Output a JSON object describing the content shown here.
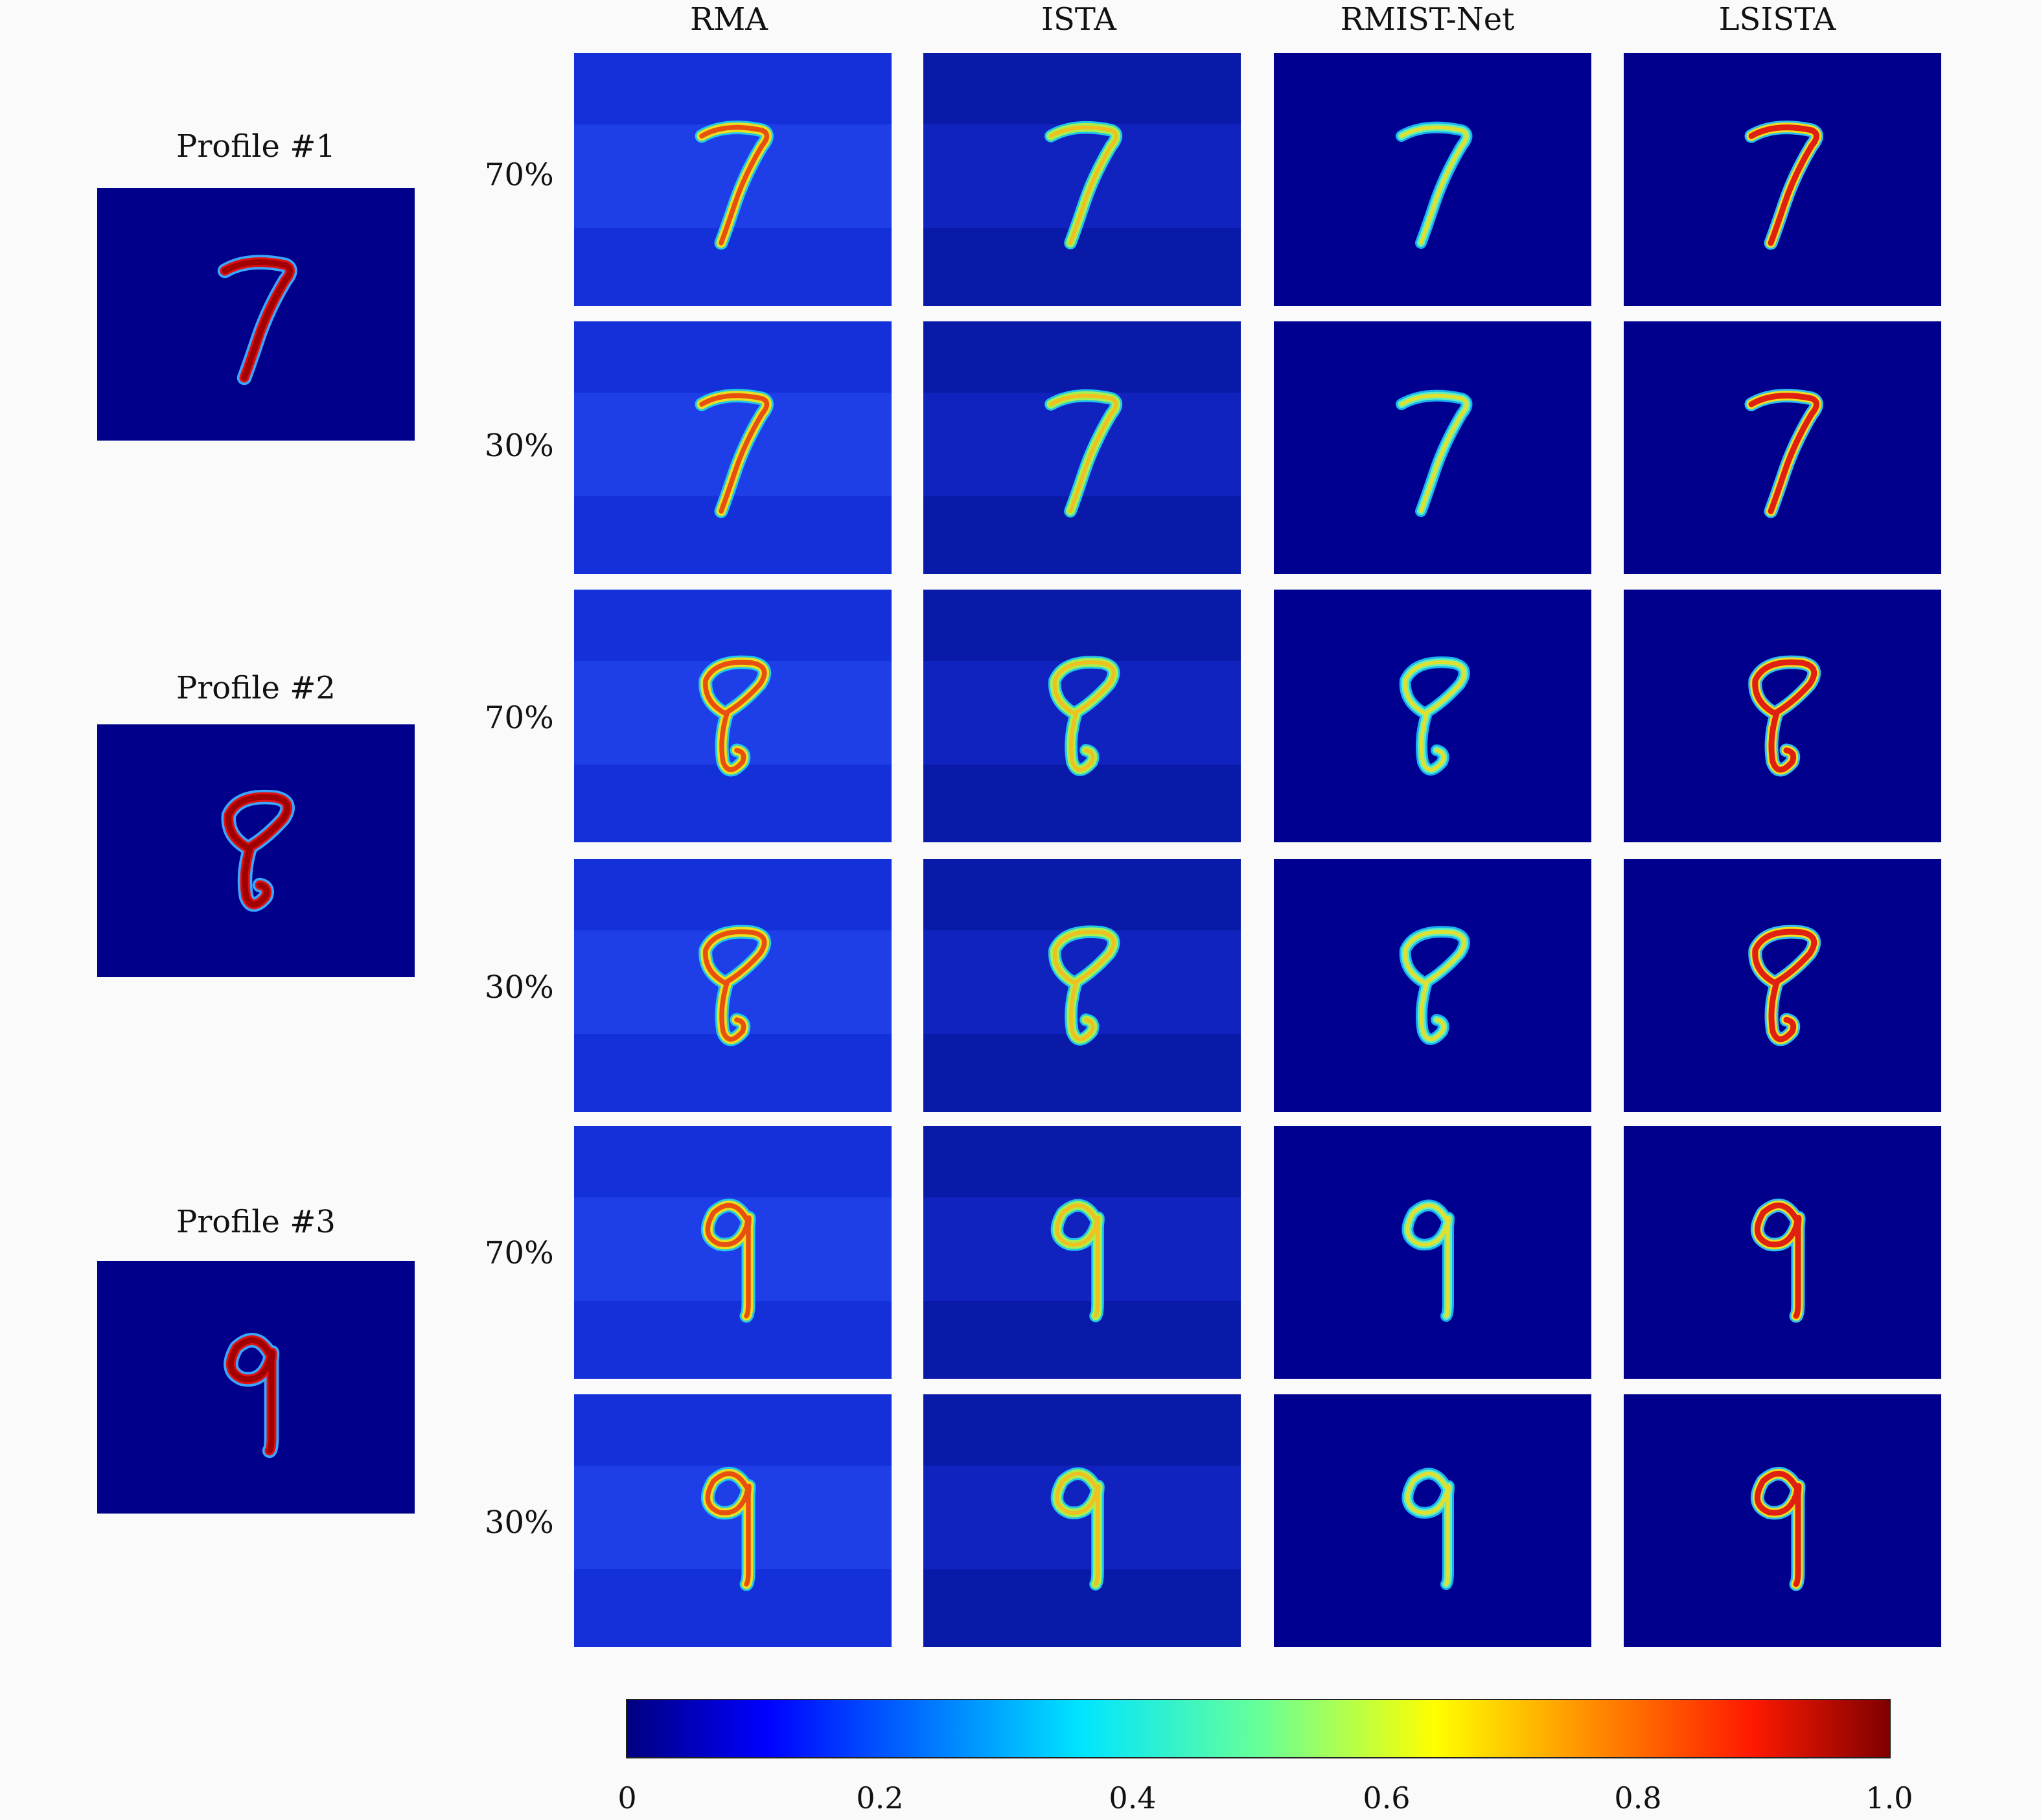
{
  "columns": [
    "RMA",
    "ISTA",
    "RMIST-Net",
    "LSISTA"
  ],
  "profiles": [
    {
      "title": "Profile #1",
      "digit": "7"
    },
    {
      "title": "Profile #2",
      "digit": "8"
    },
    {
      "title": "Profile #3",
      "digit": "9"
    }
  ],
  "rows": [
    "70%",
    "30%",
    "70%",
    "30%",
    "70%",
    "30%"
  ],
  "colorbar": {
    "ticks": [
      "0",
      "0.2",
      "0.4",
      "0.6",
      "0.8",
      "1.0"
    ],
    "colormap": "jet",
    "range": [
      0,
      1.0
    ]
  },
  "colors": {
    "background_dark": "#000086",
    "background_light": "#1f33d8",
    "digit_hot": "#b00000"
  }
}
